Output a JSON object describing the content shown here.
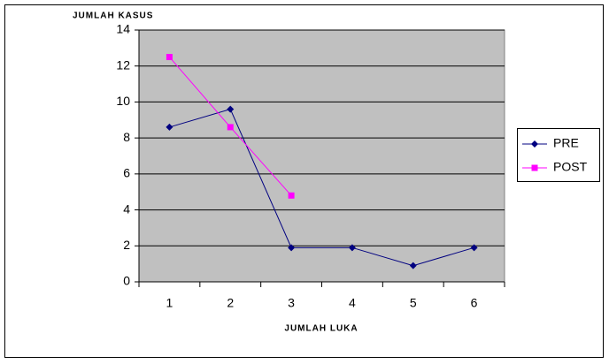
{
  "chart_data": {
    "type": "line",
    "y_label": "JUMLAH KASUS",
    "x_label": "JUMLAH LUKA",
    "categories": [
      "1",
      "2",
      "3",
      "4",
      "5",
      "6"
    ],
    "series": [
      {
        "name": "PRE",
        "color": "#000080",
        "marker": "diamond",
        "values": [
          8.6,
          9.6,
          1.9,
          1.9,
          0.9,
          1.9
        ]
      },
      {
        "name": "POST",
        "color": "#ff00ff",
        "marker": "square",
        "values": [
          12.5,
          8.6,
          4.8,
          null,
          null,
          null
        ]
      }
    ],
    "ylim": [
      0,
      14
    ],
    "yticks": [
      0,
      2,
      4,
      6,
      8,
      10,
      12,
      14
    ],
    "grid": true,
    "legend": "right",
    "plot_background": "#c0c0c0"
  }
}
